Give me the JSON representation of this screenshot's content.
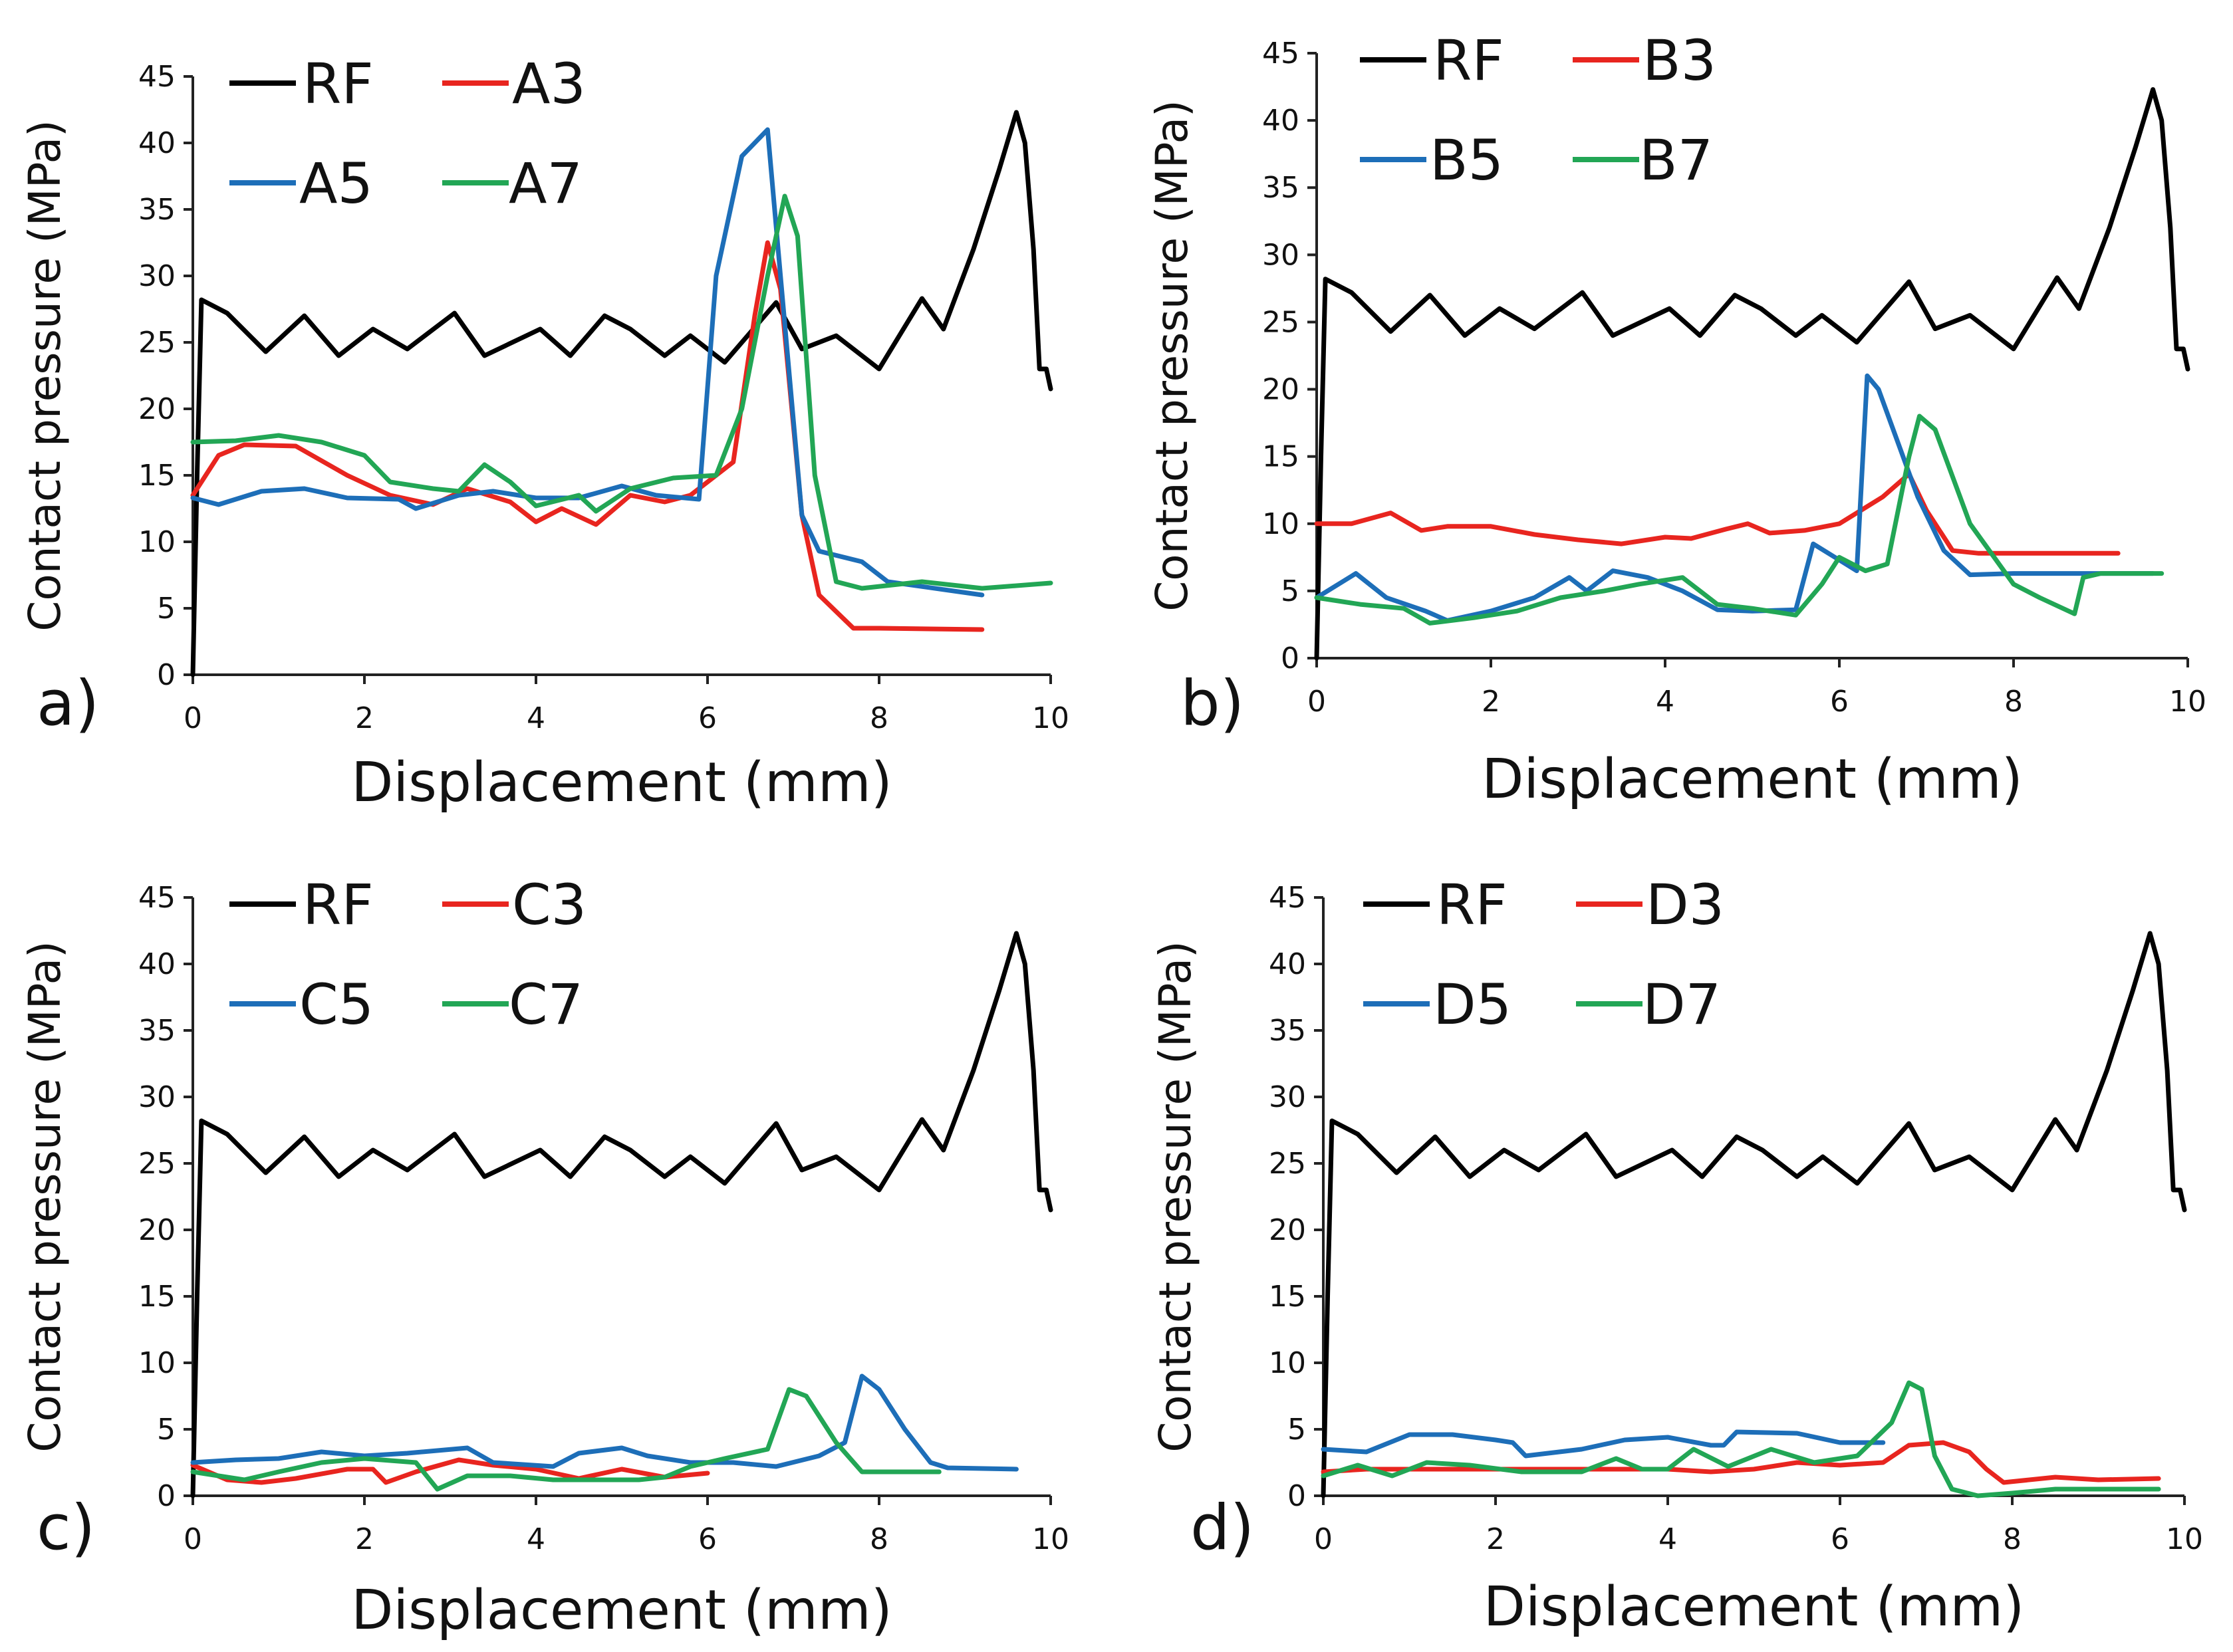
{
  "chart_data": [
    {
      "type": "line",
      "panel_label": "a)",
      "xlabel": "Displacement (mm)",
      "ylabel": "Contact pressure (MPa)",
      "xlim": [
        0,
        10
      ],
      "ylim": [
        0,
        45
      ],
      "xticks": [
        "0",
        "2",
        "4",
        "6",
        "8",
        "10"
      ],
      "yticks": [
        "0",
        "5",
        "10",
        "15",
        "20",
        "25",
        "30",
        "35",
        "40",
        "45"
      ],
      "legend_position": "top-left",
      "series": [
        {
          "name": "RF",
          "color": "#000000",
          "x": [
            0,
            0.05,
            0.1,
            0.4,
            0.85,
            1.3,
            1.7,
            2.1,
            2.5,
            3.05,
            3.4,
            4.05,
            4.4,
            4.8,
            5.1,
            5.5,
            5.8,
            6.2,
            6.8,
            7.1,
            7.5,
            8.0,
            8.5,
            8.75,
            9.1,
            9.4,
            9.6,
            9.7,
            9.8,
            9.87,
            9.95,
            10.0
          ],
          "y": [
            0,
            15,
            28.2,
            27.2,
            24.3,
            27.0,
            24.0,
            26.0,
            24.5,
            27.2,
            24.0,
            26.0,
            24.0,
            27.0,
            26.0,
            24.0,
            25.5,
            23.5,
            28.0,
            24.5,
            25.5,
            23.0,
            28.3,
            26.0,
            32.0,
            38.0,
            42.3,
            40.0,
            32.0,
            23.0,
            23.0,
            21.5
          ]
        },
        {
          "name": "A3",
          "color": "#e8251f",
          "x": [
            0,
            0.3,
            0.6,
            1.2,
            1.8,
            2.3,
            2.8,
            3.2,
            3.7,
            4.0,
            4.3,
            4.7,
            5.1,
            5.5,
            5.8,
            6.3,
            6.55,
            6.7,
            6.85,
            7.1,
            7.3,
            7.7,
            8.0,
            9.2
          ],
          "y": [
            13.5,
            16.5,
            17.3,
            17.2,
            15.0,
            13.5,
            12.8,
            14.0,
            13.0,
            11.5,
            12.5,
            11.3,
            13.5,
            13.0,
            13.5,
            16.0,
            27.0,
            32.5,
            29.0,
            12.0,
            6.0,
            3.5,
            3.5,
            3.4
          ]
        },
        {
          "name": "A5",
          "color": "#1d6eb8",
          "x": [
            0,
            0.3,
            0.8,
            1.3,
            1.8,
            2.4,
            2.6,
            3.1,
            3.5,
            4.0,
            4.5,
            5.0,
            5.4,
            5.9,
            6.1,
            6.4,
            6.7,
            6.85,
            7.1,
            7.3,
            7.8,
            8.1,
            9.2
          ],
          "y": [
            13.3,
            12.8,
            13.8,
            14.0,
            13.3,
            13.2,
            12.5,
            13.5,
            13.8,
            13.3,
            13.3,
            14.2,
            13.5,
            13.2,
            30.0,
            39.0,
            41.0,
            30.0,
            12.0,
            9.3,
            8.5,
            7.0,
            6.0
          ]
        },
        {
          "name": "A7",
          "color": "#22a655",
          "x": [
            0,
            0.5,
            1.0,
            1.5,
            2.0,
            2.3,
            2.8,
            3.1,
            3.4,
            3.7,
            4.0,
            4.5,
            4.7,
            5.1,
            5.6,
            6.1,
            6.4,
            6.7,
            6.9,
            7.05,
            7.25,
            7.5,
            7.8,
            8.5,
            9.2,
            10.0
          ],
          "y": [
            17.5,
            17.6,
            18.0,
            17.5,
            16.5,
            14.5,
            14.0,
            13.8,
            15.8,
            14.5,
            12.7,
            13.5,
            12.3,
            14.0,
            14.8,
            15.0,
            20.0,
            30.0,
            36.0,
            33.0,
            15.0,
            7.0,
            6.5,
            7.0,
            6.5,
            6.9
          ]
        }
      ]
    },
    {
      "type": "line",
      "panel_label": "b)",
      "xlabel": "Displacement (mm)",
      "ylabel": "Contact pressure (MPa)",
      "xlim": [
        0,
        10
      ],
      "ylim": [
        0,
        45
      ],
      "xticks": [
        "0",
        "2",
        "4",
        "6",
        "8",
        "10"
      ],
      "yticks": [
        "0",
        "5",
        "10",
        "15",
        "20",
        "25",
        "30",
        "35",
        "40",
        "45"
      ],
      "legend_position": "top-left",
      "series": [
        {
          "name": "RF",
          "color": "#000000",
          "x": [
            0,
            0.05,
            0.1,
            0.4,
            0.85,
            1.3,
            1.7,
            2.1,
            2.5,
            3.05,
            3.4,
            4.05,
            4.4,
            4.8,
            5.1,
            5.5,
            5.8,
            6.2,
            6.8,
            7.1,
            7.5,
            8.0,
            8.5,
            8.75,
            9.1,
            9.4,
            9.6,
            9.7,
            9.8,
            9.87,
            9.95,
            10.0
          ],
          "y": [
            0,
            15,
            28.2,
            27.2,
            24.3,
            27.0,
            24.0,
            26.0,
            24.5,
            27.2,
            24.0,
            26.0,
            24.0,
            27.0,
            26.0,
            24.0,
            25.5,
            23.5,
            28.0,
            24.5,
            25.5,
            23.0,
            28.3,
            26.0,
            32.0,
            38.0,
            42.3,
            40.0,
            32.0,
            23.0,
            23.0,
            21.5
          ]
        },
        {
          "name": "B3",
          "color": "#e8251f",
          "x": [
            0,
            0.4,
            0.85,
            1.2,
            1.5,
            2.0,
            2.5,
            3.0,
            3.5,
            4.0,
            4.3,
            4.7,
            4.95,
            5.2,
            5.6,
            6.0,
            6.5,
            6.8,
            7.0,
            7.3,
            7.6,
            8.0,
            8.5,
            9.2
          ],
          "y": [
            10.0,
            10.0,
            10.8,
            9.5,
            9.8,
            9.8,
            9.2,
            8.8,
            8.5,
            9.0,
            8.9,
            9.6,
            10.0,
            9.3,
            9.5,
            10.0,
            12.0,
            13.7,
            11.0,
            8.0,
            7.8,
            7.8,
            7.8,
            7.8
          ]
        },
        {
          "name": "B5",
          "color": "#1d6eb8",
          "x": [
            0,
            0.45,
            0.8,
            1.25,
            1.5,
            2.0,
            2.5,
            2.9,
            3.1,
            3.4,
            3.8,
            4.2,
            4.6,
            5.0,
            5.5,
            5.7,
            5.95,
            6.2,
            6.32,
            6.45,
            6.9,
            7.2,
            7.5,
            8.0,
            8.5,
            9.6
          ],
          "y": [
            4.5,
            6.3,
            4.5,
            3.5,
            2.8,
            3.5,
            4.5,
            6.0,
            5.0,
            6.5,
            6.0,
            5.0,
            3.6,
            3.5,
            3.6,
            8.5,
            7.5,
            6.5,
            21.0,
            20.0,
            12.0,
            8.0,
            6.2,
            6.3,
            6.3,
            6.3
          ]
        },
        {
          "name": "B7",
          "color": "#22a655",
          "x": [
            0,
            0.5,
            1.0,
            1.3,
            1.8,
            2.3,
            2.8,
            3.3,
            3.7,
            4.2,
            4.6,
            5.0,
            5.5,
            5.8,
            6.0,
            6.3,
            6.55,
            6.8,
            6.92,
            7.1,
            7.5,
            8.0,
            8.3,
            8.7,
            8.8,
            9.0,
            9.7
          ],
          "y": [
            4.5,
            4.0,
            3.7,
            2.6,
            3.0,
            3.5,
            4.5,
            5.0,
            5.5,
            6.0,
            4.0,
            3.7,
            3.2,
            5.5,
            7.5,
            6.5,
            7.0,
            15.0,
            18.0,
            17.0,
            10.0,
            5.5,
            4.5,
            3.3,
            6.0,
            6.3,
            6.3
          ]
        }
      ]
    },
    {
      "type": "line",
      "panel_label": "c)",
      "xlabel": "Displacement (mm)",
      "ylabel": "Contact pressure (MPa)",
      "xlim": [
        0,
        10
      ],
      "ylim": [
        0,
        45
      ],
      "xticks": [
        "0",
        "2",
        "4",
        "6",
        "8",
        "10"
      ],
      "yticks": [
        "0",
        "5",
        "10",
        "15",
        "20",
        "25",
        "30",
        "35",
        "40",
        "45"
      ],
      "legend_position": "top-left",
      "series": [
        {
          "name": "RF",
          "color": "#000000",
          "x": [
            0,
            0.05,
            0.1,
            0.4,
            0.85,
            1.3,
            1.7,
            2.1,
            2.5,
            3.05,
            3.4,
            4.05,
            4.4,
            4.8,
            5.1,
            5.5,
            5.8,
            6.2,
            6.8,
            7.1,
            7.5,
            8.0,
            8.5,
            8.75,
            9.1,
            9.4,
            9.6,
            9.7,
            9.8,
            9.87,
            9.95,
            10.0
          ],
          "y": [
            0,
            15,
            28.2,
            27.2,
            24.3,
            27.0,
            24.0,
            26.0,
            24.5,
            27.2,
            24.0,
            26.0,
            24.0,
            27.0,
            26.0,
            24.0,
            25.5,
            23.5,
            28.0,
            24.5,
            25.5,
            23.0,
            28.3,
            26.0,
            32.0,
            38.0,
            42.3,
            40.0,
            32.0,
            23.0,
            23.0,
            21.5
          ]
        },
        {
          "name": "C3",
          "color": "#e8251f",
          "x": [
            0,
            0.4,
            0.8,
            1.2,
            1.8,
            2.1,
            2.25,
            2.6,
            3.1,
            3.5,
            4.0,
            4.5,
            5.0,
            5.5,
            6.0
          ],
          "y": [
            2.3,
            1.2,
            1.0,
            1.3,
            2.0,
            2.0,
            1.0,
            1.8,
            2.7,
            2.3,
            2.0,
            1.3,
            2.0,
            1.4,
            1.7
          ]
        },
        {
          "name": "C5",
          "color": "#1d6eb8",
          "x": [
            0,
            0.5,
            1.0,
            1.5,
            2.0,
            2.5,
            3.2,
            3.5,
            4.2,
            4.5,
            5.0,
            5.3,
            5.8,
            6.3,
            6.8,
            7.3,
            7.6,
            7.8,
            8.0,
            8.3,
            8.6,
            8.8,
            9.6
          ],
          "y": [
            2.5,
            2.7,
            2.8,
            3.3,
            3.0,
            3.2,
            3.6,
            2.5,
            2.2,
            3.2,
            3.6,
            3.0,
            2.5,
            2.5,
            2.2,
            3.0,
            4.0,
            9.0,
            8.0,
            5.0,
            2.5,
            2.1,
            2.0
          ]
        },
        {
          "name": "C7",
          "color": "#22a655",
          "x": [
            0,
            0.6,
            1.0,
            1.5,
            2.0,
            2.6,
            2.85,
            3.2,
            3.7,
            4.2,
            4.7,
            5.2,
            5.5,
            5.8,
            6.2,
            6.7,
            6.95,
            7.15,
            7.5,
            7.8,
            8.3,
            8.7
          ],
          "y": [
            1.8,
            1.2,
            1.8,
            2.5,
            2.8,
            2.5,
            0.5,
            1.5,
            1.5,
            1.2,
            1.2,
            1.2,
            1.4,
            2.2,
            2.8,
            3.5,
            8.0,
            7.5,
            4.0,
            1.8,
            1.8,
            1.8
          ]
        }
      ]
    },
    {
      "type": "line",
      "panel_label": "d)",
      "xlabel": "Displacement (mm)",
      "ylabel": "Contact pressure (MPa)",
      "xlim": [
        0,
        10
      ],
      "ylim": [
        0,
        45
      ],
      "xticks": [
        "0",
        "2",
        "4",
        "6",
        "8",
        "10"
      ],
      "yticks": [
        "0",
        "5",
        "10",
        "15",
        "20",
        "25",
        "30",
        "35",
        "40",
        "45"
      ],
      "legend_position": "top-left",
      "series": [
        {
          "name": "RF",
          "color": "#000000",
          "x": [
            0,
            0.05,
            0.1,
            0.4,
            0.85,
            1.3,
            1.7,
            2.1,
            2.5,
            3.05,
            3.4,
            4.05,
            4.4,
            4.8,
            5.1,
            5.5,
            5.8,
            6.2,
            6.8,
            7.1,
            7.5,
            8.0,
            8.5,
            8.75,
            9.1,
            9.4,
            9.6,
            9.7,
            9.8,
            9.87,
            9.95,
            10.0
          ],
          "y": [
            0,
            15,
            28.2,
            27.2,
            24.3,
            27.0,
            24.0,
            26.0,
            24.5,
            27.2,
            24.0,
            26.0,
            24.0,
            27.0,
            26.0,
            24.0,
            25.5,
            23.5,
            28.0,
            24.5,
            25.5,
            23.0,
            28.3,
            26.0,
            32.0,
            38.0,
            42.3,
            40.0,
            32.0,
            23.0,
            23.0,
            21.5
          ]
        },
        {
          "name": "D3",
          "color": "#e8251f",
          "x": [
            0,
            0.5,
            1.0,
            2.0,
            3.0,
            4.0,
            4.5,
            5.0,
            5.5,
            6.0,
            6.5,
            6.8,
            7.2,
            7.5,
            7.7,
            7.9,
            8.5,
            9.0,
            9.7
          ],
          "y": [
            1.8,
            2.0,
            2.0,
            2.0,
            2.0,
            2.0,
            1.8,
            2.0,
            2.5,
            2.3,
            2.5,
            3.8,
            4.0,
            3.3,
            2.0,
            1.0,
            1.4,
            1.2,
            1.3
          ]
        },
        {
          "name": "D5",
          "color": "#1d6eb8",
          "x": [
            0,
            0.5,
            1.0,
            1.5,
            2.0,
            2.2,
            2.35,
            3.0,
            3.5,
            4.0,
            4.5,
            4.65,
            4.8,
            5.5,
            6.0,
            6.5
          ],
          "y": [
            3.5,
            3.3,
            4.6,
            4.6,
            4.2,
            4.0,
            3.0,
            3.5,
            4.2,
            4.4,
            3.8,
            3.8,
            4.8,
            4.7,
            4.0,
            4.0
          ]
        },
        {
          "name": "D7",
          "color": "#22a655",
          "x": [
            0,
            0.4,
            0.8,
            1.2,
            1.7,
            2.3,
            3.0,
            3.4,
            3.7,
            4.0,
            4.3,
            4.7,
            5.2,
            5.7,
            6.2,
            6.6,
            6.8,
            6.95,
            7.1,
            7.3,
            7.6,
            8.0,
            8.5,
            9.0,
            9.7
          ],
          "y": [
            1.5,
            2.3,
            1.5,
            2.5,
            2.3,
            1.8,
            1.8,
            2.8,
            2.0,
            2.0,
            3.5,
            2.2,
            3.5,
            2.5,
            3.0,
            5.5,
            8.5,
            8.0,
            3.0,
            0.5,
            0.0,
            0.2,
            0.5,
            0.5,
            0.5
          ]
        }
      ]
    }
  ]
}
